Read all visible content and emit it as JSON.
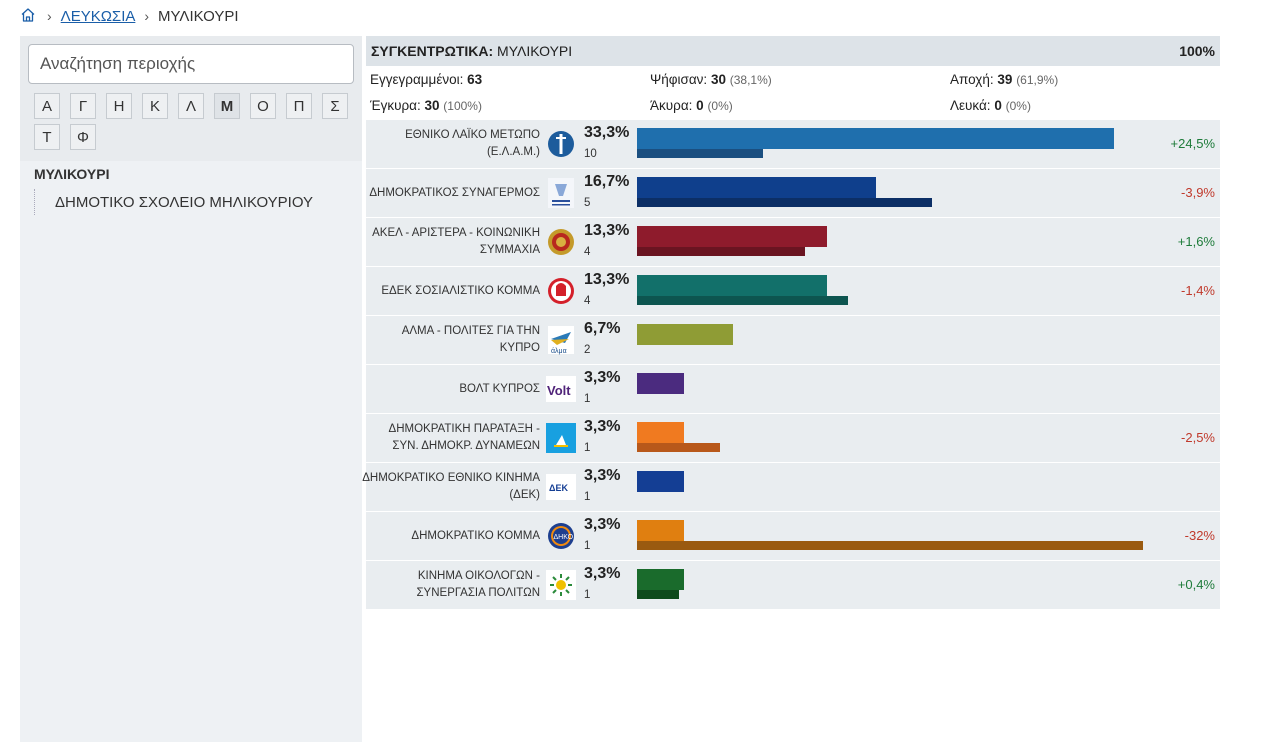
{
  "breadcrumb": {
    "home_icon": "home-icon",
    "parent": "ΛΕΥΚΩΣΙΑ",
    "current": "ΜΥΛΙΚΟΥΡΙ"
  },
  "sidebar": {
    "search_placeholder": "Αναζήτηση περιοχής",
    "letters": [
      "Α",
      "Γ",
      "Η",
      "Κ",
      "Λ",
      "Μ",
      "Ο",
      "Π",
      "Σ",
      "Τ",
      "Φ"
    ],
    "active_letter": "Μ",
    "area_title": "ΜΥΛΙΚΟΥΡΙ",
    "polling_station": "ΔΗΜΟΤΙΚΟ ΣΧΟΛΕΙΟ ΜΗΛΙΚΟΥΡΙΟΥ"
  },
  "summary": {
    "label": "ΣΥΓΚΕΝΤΡΩΤΙΚΑ:",
    "area": "ΜΥΛΙΚΟΥΡΙ",
    "counted": "100%",
    "registered_label": "Εγγεγραμμένοι:",
    "registered": "63",
    "voted_label": "Ψήφισαν:",
    "voted": "30",
    "voted_pct": "(38,1%)",
    "abstention_label": "Αποχή:",
    "abstention": "39",
    "abstention_pct": "(61,9%)",
    "valid_label": "Έγκυρα:",
    "valid": "30",
    "valid_pct": "(100%)",
    "invalid_label": "Άκυρα:",
    "invalid": "0",
    "invalid_pct": "(0%)",
    "blank_label": "Λευκά:",
    "blank": "0",
    "blank_pct": "(0%)"
  },
  "parties": [
    {
      "name": "ΕΘΝΙΚΟ ΛΑΪΚΟ ΜΕΤΩΠΟ (Ε.Λ.Α.Μ.)",
      "logo": "elam-logo-icon",
      "pct": "33,3%",
      "votes": "10",
      "share": 0.333,
      "prev_share": 0.088,
      "change": "+24,5%",
      "color": "#1f6fad",
      "prev_color": "#1b4f80"
    },
    {
      "name": "ΔΗΜΟΚΡΑΤΙΚΟΣ ΣΥΝΑΓΕΡΜΟΣ",
      "logo": "disy-logo-icon",
      "pct": "16,7%",
      "votes": "5",
      "share": 0.167,
      "prev_share": 0.206,
      "change": "-3,9%",
      "color": "#0f3f8c",
      "prev_color": "#0c2f66"
    },
    {
      "name": "ΑΚΕΛ - ΑΡΙΣΤΕΡΑ - ΚΟΙΝΩΝΙΚΗ ΣΥΜΜΑΧΙΑ",
      "logo": "akel-logo-icon",
      "pct": "13,3%",
      "votes": "4",
      "share": 0.133,
      "prev_share": 0.117,
      "change": "+1,6%",
      "color": "#8e1b2c",
      "prev_color": "#6a1421"
    },
    {
      "name": "ΕΔΕΚ ΣΟΣΙΑΛΙΣΤΙΚΟ ΚΟΜΜΑ",
      "logo": "edek-logo-icon",
      "pct": "13,3%",
      "votes": "4",
      "share": 0.133,
      "prev_share": 0.147,
      "change": "-1,4%",
      "color": "#12706a",
      "prev_color": "#0d5550"
    },
    {
      "name": "ΑΛΜΑ - ΠΟΛΙΤΕΣ ΓΙΑ ΤΗΝ ΚΥΠΡΟ",
      "logo": "alma-logo-icon",
      "pct": "6,7%",
      "votes": "2",
      "share": 0.067,
      "prev_share": 0,
      "change": "",
      "color": "#8f9c35",
      "prev_color": "#8f9c35"
    },
    {
      "name": "ΒΟΛΤ ΚΥΠΡΟΣ",
      "logo": "volt-logo-icon",
      "pct": "3,3%",
      "votes": "1",
      "share": 0.033,
      "prev_share": 0,
      "change": "",
      "color": "#4b2b7f",
      "prev_color": "#4b2b7f"
    },
    {
      "name": "ΔΗΜΟΚΡΑΤΙΚΗ ΠΑΡΑΤΑΞΗ - ΣΥΝ. ΔΗΜΟΚΡ. ΔΥΝΑΜΕΩΝ",
      "logo": "dipa-logo-icon",
      "pct": "3,3%",
      "votes": "1",
      "share": 0.033,
      "prev_share": 0.058,
      "change": "-2,5%",
      "color": "#f07a20",
      "prev_color": "#b8581a"
    },
    {
      "name": "ΔΗΜΟΚΡΑΤΙΚΟ ΕΘΝΙΚΟ ΚΙΝΗΜΑ (ΔΕΚ)",
      "logo": "dek-logo-icon",
      "pct": "3,3%",
      "votes": "1",
      "share": 0.033,
      "prev_share": 0,
      "change": "",
      "color": "#143e94",
      "prev_color": "#143e94"
    },
    {
      "name": "ΔΗΜΟΚΡΑΤΙΚΟ ΚΟΜΜΑ",
      "logo": "diko-logo-icon",
      "pct": "3,3%",
      "votes": "1",
      "share": 0.033,
      "prev_share": 0.353,
      "change": "-32%",
      "color": "#e07f10",
      "prev_color": "#9a5a10"
    },
    {
      "name": "ΚΙΝΗΜΑ ΟΙΚΟΛΟΓΩΝ - ΣΥΝΕΡΓΑΣΙΑ ΠΟΛΙΤΩΝ",
      "logo": "ecologists-logo-icon",
      "pct": "3,3%",
      "votes": "1",
      "share": 0.033,
      "prev_share": 0.029,
      "change": "+0,4%",
      "color": "#1a6b2c",
      "prev_color": "#0e4a1c"
    }
  ]
}
